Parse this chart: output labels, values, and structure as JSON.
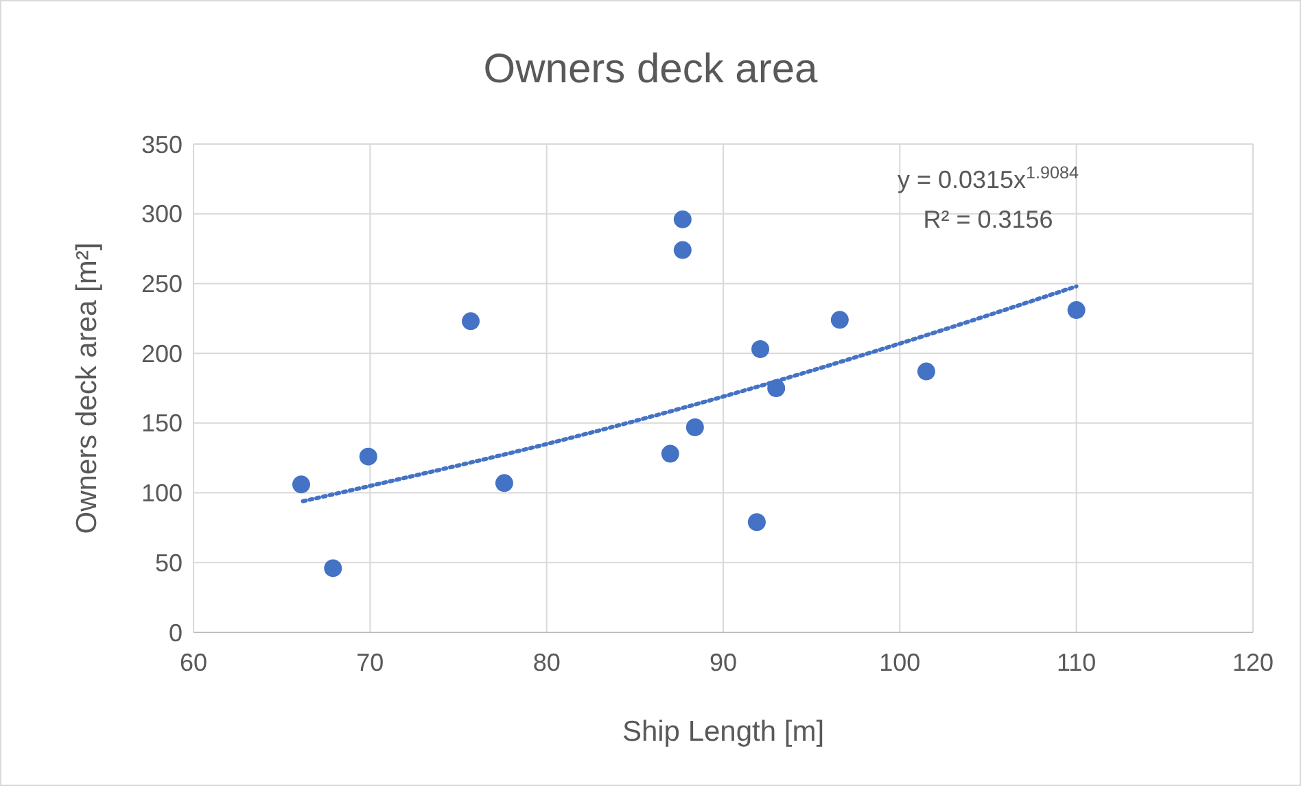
{
  "chart_data": {
    "type": "scatter",
    "title": "Owners deck area",
    "xlabel": "Ship Length [m]",
    "ylabel": "Owners deck area [m²]",
    "xlim": [
      60,
      120
    ],
    "xticks": [
      60,
      70,
      80,
      90,
      100,
      110,
      120
    ],
    "ylim": [
      0,
      350
    ],
    "yticks": [
      0,
      50,
      100,
      150,
      200,
      250,
      300,
      350
    ],
    "grid": true,
    "series": [
      {
        "color": "#4472c4",
        "marker": "circle",
        "x": [
          66.1,
          67.9,
          69.9,
          75.7,
          77.6,
          87.0,
          87.7,
          87.7,
          88.4,
          91.9,
          92.1,
          93.0,
          96.6,
          101.5,
          110.0
        ],
        "values": [
          106,
          46,
          126,
          223,
          107,
          128,
          296,
          274,
          147,
          79,
          203,
          175,
          224,
          187,
          231
        ]
      },
      {
        "type": "line",
        "color": "#4472c4",
        "marker": "none",
        "line_style": "dotted",
        "x": [
          66.2,
          70,
          80,
          90,
          100,
          110
        ],
        "values": [
          94,
          105,
          135,
          169,
          207,
          248
        ]
      }
    ],
    "annotations": [
      "y = 0.0315x$^{1.9084}$",
      "R² = 0.3156"
    ]
  }
}
